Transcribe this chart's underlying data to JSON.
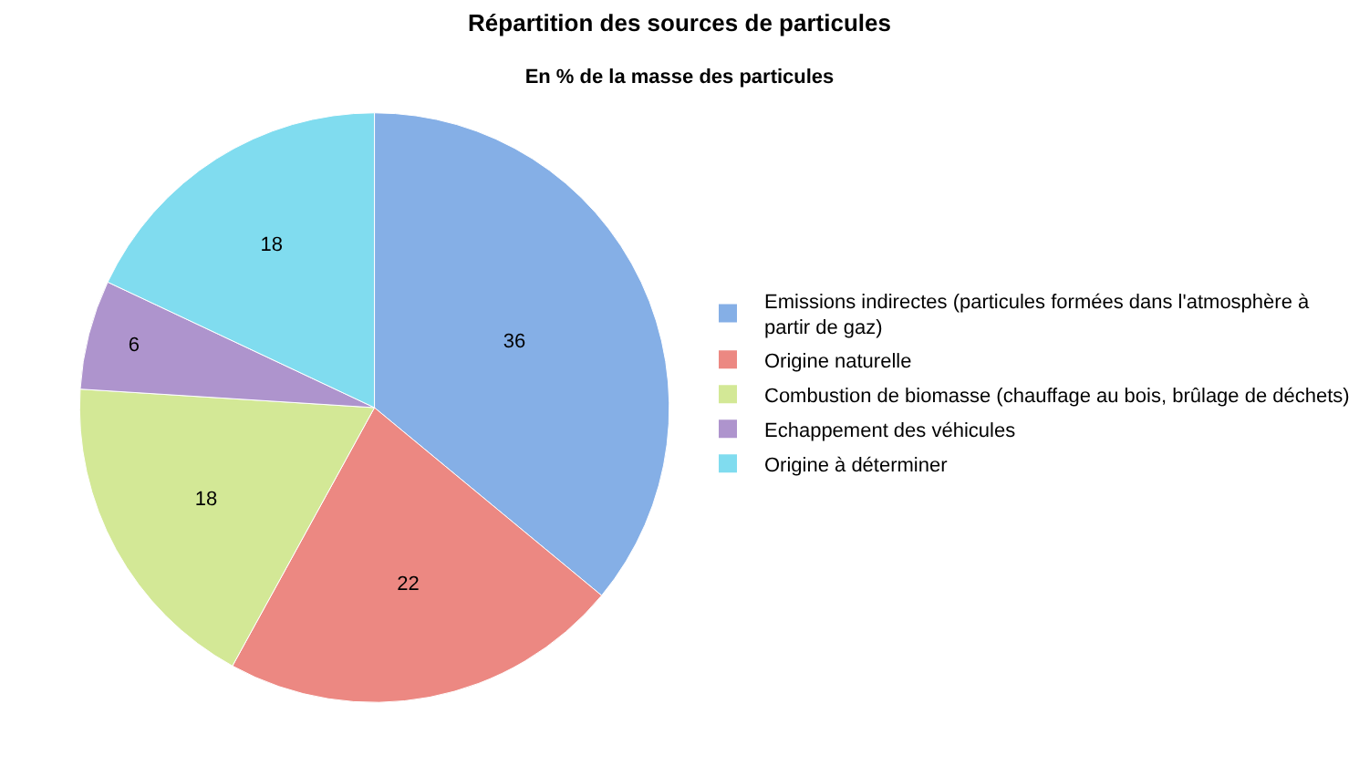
{
  "chart_data": {
    "type": "pie",
    "title": "Répartition des sources de particules",
    "subtitle": "En % de la masse des particules",
    "categories": [
      "Emissions indirectes (particules formées dans l'atmosphère à partir de gaz)",
      "Origine naturelle",
      "Combustion de biomasse (chauffage au bois, brûlage de déchets)",
      "Echappement des véhicules",
      "Origine à déterminer"
    ],
    "values": [
      36,
      22,
      18,
      6,
      18
    ],
    "colors": [
      "#85afe6",
      "#ec8882",
      "#d3e896",
      "#ae94cd",
      "#80dcef"
    ],
    "data_labels": true,
    "legend": "right"
  }
}
